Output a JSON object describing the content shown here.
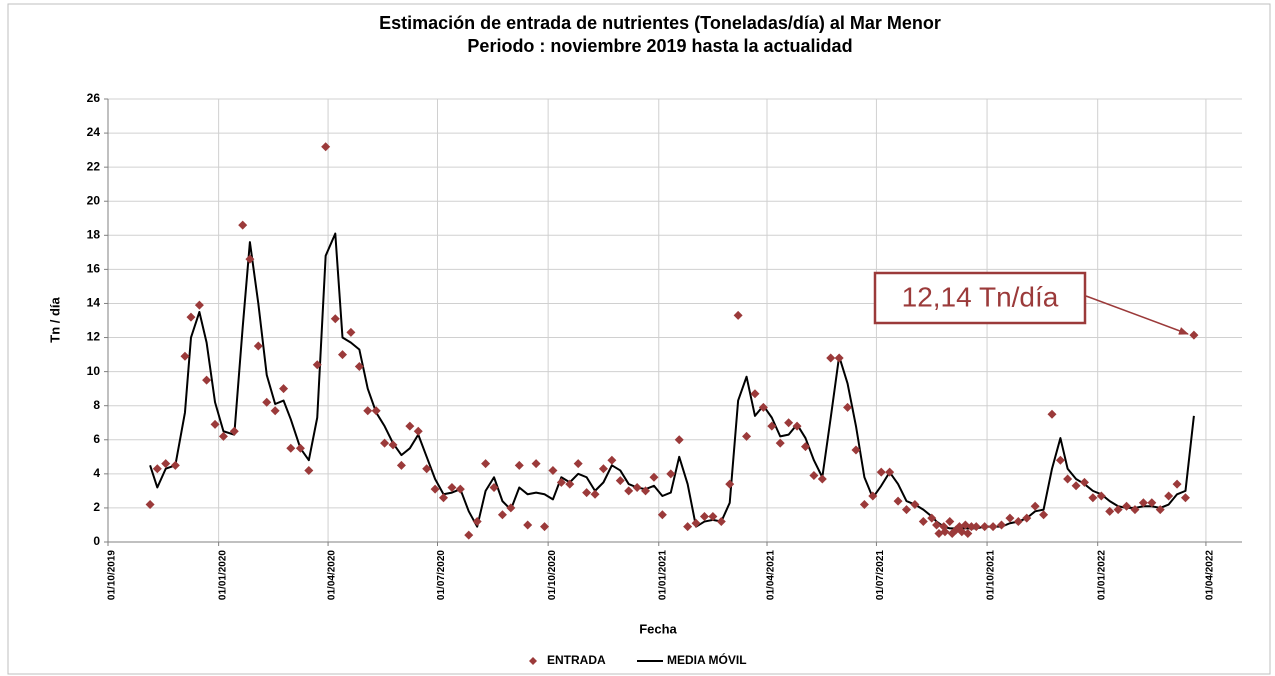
{
  "chart_data": {
    "type": "scatter",
    "title": "Estimación de entrada de nutrientes (Toneladas/día) al  Mar Menor",
    "subtitle": "Periodo : noviembre 2019 hasta la actualidad",
    "x_label": "Fecha",
    "y_label": "Tn  / día",
    "xlim": [
      "2019-10-01",
      "2022-05-01"
    ],
    "xticks": [
      {
        "value": "2019-10-01",
        "label": "01/10/2019"
      },
      {
        "value": "2020-01-01",
        "label": "01/01/2020"
      },
      {
        "value": "2020-04-01",
        "label": "01/04/2020"
      },
      {
        "value": "2020-07-01",
        "label": "01/07/2020"
      },
      {
        "value": "2020-10-01",
        "label": "01/10/2020"
      },
      {
        "value": "2021-01-01",
        "label": "01/01/2021"
      },
      {
        "value": "2021-04-01",
        "label": "01/04/2021"
      },
      {
        "value": "2021-07-01",
        "label": "01/07/2021"
      },
      {
        "value": "2021-10-01",
        "label": "01/10/2021"
      },
      {
        "value": "2022-01-01",
        "label": "01/01/2022"
      },
      {
        "value": "2022-04-01",
        "label": "01/04/2022"
      }
    ],
    "ylim": [
      0,
      26
    ],
    "yticks": [
      0,
      2,
      4,
      6,
      8,
      10,
      12,
      14,
      16,
      18,
      20,
      22,
      24,
      26
    ],
    "grid": true,
    "legend": "bottom",
    "annotations": [
      {
        "text": "12,14 Tn/día",
        "color": "#9b3a3a"
      }
    ],
    "series": [
      {
        "name": "ENTRADA",
        "type": "scatter",
        "color": "#9b3a3a",
        "x": [
          "2019-11-05",
          "2019-11-11",
          "2019-11-18",
          "2019-11-26",
          "2019-12-04",
          "2019-12-09",
          "2019-12-16",
          "2019-12-22",
          "2019-12-29",
          "2020-01-05",
          "2020-01-14",
          "2020-01-21",
          "2020-01-27",
          "2020-02-03",
          "2020-02-10",
          "2020-02-17",
          "2020-02-24",
          "2020-03-01",
          "2020-03-09",
          "2020-03-16",
          "2020-03-23",
          "2020-03-30",
          "2020-04-07",
          "2020-04-13",
          "2020-04-20",
          "2020-04-27",
          "2020-05-04",
          "2020-05-11",
          "2020-05-18",
          "2020-05-25",
          "2020-06-01",
          "2020-06-08",
          "2020-06-15",
          "2020-06-22",
          "2020-06-29",
          "2020-07-06",
          "2020-07-13",
          "2020-07-20",
          "2020-07-27",
          "2020-08-03",
          "2020-08-10",
          "2020-08-17",
          "2020-08-24",
          "2020-08-31",
          "2020-09-07",
          "2020-09-14",
          "2020-09-21",
          "2020-09-28",
          "2020-10-05",
          "2020-10-12",
          "2020-10-19",
          "2020-10-26",
          "2020-11-02",
          "2020-11-09",
          "2020-11-16",
          "2020-11-23",
          "2020-11-30",
          "2020-12-07",
          "2020-12-14",
          "2020-12-21",
          "2020-12-28",
          "2021-01-04",
          "2021-01-11",
          "2021-01-18",
          "2021-01-25",
          "2021-02-01",
          "2021-02-08",
          "2021-02-15",
          "2021-02-22",
          "2021-03-01",
          "2021-03-08",
          "2021-03-15",
          "2021-03-22",
          "2021-03-29",
          "2021-04-05",
          "2021-04-12",
          "2021-04-19",
          "2021-04-26",
          "2021-05-03",
          "2021-05-10",
          "2021-05-17",
          "2021-05-24",
          "2021-05-31",
          "2021-06-07",
          "2021-06-14",
          "2021-06-21",
          "2021-06-28",
          "2021-07-05",
          "2021-07-12",
          "2021-07-19",
          "2021-07-26",
          "2021-08-02",
          "2021-08-09",
          "2021-08-16",
          "2021-08-20",
          "2021-08-22",
          "2021-08-26",
          "2021-08-27",
          "2021-08-31",
          "2021-09-02",
          "2021-09-05",
          "2021-09-08",
          "2021-09-10",
          "2021-09-13",
          "2021-09-15",
          "2021-09-18",
          "2021-09-22",
          "2021-09-29",
          "2021-10-06",
          "2021-10-13",
          "2021-10-20",
          "2021-10-27",
          "2021-11-03",
          "2021-11-10",
          "2021-11-17",
          "2021-11-24",
          "2021-12-01",
          "2021-12-07",
          "2021-12-14",
          "2021-12-21",
          "2021-12-28",
          "2022-01-04",
          "2022-01-11",
          "2022-01-18",
          "2022-01-25",
          "2022-02-01",
          "2022-02-08",
          "2022-02-15",
          "2022-02-22",
          "2022-03-01",
          "2022-03-08",
          "2022-03-15",
          "2022-03-22"
        ],
        "values": [
          2.2,
          4.3,
          4.6,
          4.5,
          10.9,
          13.2,
          13.9,
          9.5,
          6.9,
          6.2,
          6.5,
          18.6,
          16.6,
          11.5,
          8.2,
          7.7,
          9.0,
          5.5,
          5.5,
          4.2,
          10.4,
          23.2,
          13.1,
          11.0,
          12.3,
          10.3,
          7.7,
          7.7,
          5.8,
          5.7,
          4.5,
          6.8,
          6.5,
          4.3,
          3.1,
          2.6,
          3.2,
          3.1,
          0.4,
          1.2,
          4.6,
          3.2,
          1.6,
          2.0,
          4.5,
          1.0,
          4.6,
          0.9,
          4.2,
          3.5,
          3.4,
          4.6,
          2.9,
          2.8,
          4.3,
          4.8,
          3.6,
          3.0,
          3.2,
          3.0,
          3.8,
          1.6,
          4.0,
          6.0,
          0.9,
          1.1,
          1.5,
          1.5,
          1.2,
          3.4,
          13.3,
          6.2,
          8.7,
          7.9,
          6.8,
          5.8,
          7.0,
          6.8,
          5.6,
          3.9,
          3.7,
          10.8,
          10.8,
          7.9,
          5.4,
          2.2,
          2.7,
          4.1,
          4.1,
          2.4,
          1.9,
          2.2,
          1.2,
          1.4,
          1.0,
          0.5,
          0.9,
          0.6,
          1.2,
          0.5,
          0.7,
          0.9,
          0.6,
          1.0,
          0.5,
          0.9,
          0.9,
          0.9,
          0.9,
          1.0,
          1.4,
          1.2,
          1.4,
          2.1,
          1.6,
          7.5,
          4.8,
          3.7,
          3.3,
          3.5,
          2.6,
          2.7,
          1.8,
          1.9,
          2.1,
          1.9,
          2.3,
          2.3,
          1.9,
          2.7,
          3.4,
          2.6,
          12.14
        ]
      },
      {
        "name": "MEDIA MÓVIL",
        "type": "line",
        "color": "#000000",
        "x": [
          "2019-11-05",
          "2019-11-11",
          "2019-11-18",
          "2019-11-26",
          "2019-12-04",
          "2019-12-09",
          "2019-12-16",
          "2019-12-22",
          "2019-12-29",
          "2020-01-05",
          "2020-01-14",
          "2020-01-21",
          "2020-01-27",
          "2020-02-03",
          "2020-02-10",
          "2020-02-17",
          "2020-02-24",
          "2020-03-01",
          "2020-03-09",
          "2020-03-16",
          "2020-03-23",
          "2020-03-30",
          "2020-04-07",
          "2020-04-13",
          "2020-04-20",
          "2020-04-27",
          "2020-05-04",
          "2020-05-11",
          "2020-05-18",
          "2020-05-25",
          "2020-06-01",
          "2020-06-08",
          "2020-06-15",
          "2020-06-22",
          "2020-06-29",
          "2020-07-06",
          "2020-07-13",
          "2020-07-20",
          "2020-07-27",
          "2020-08-03",
          "2020-08-10",
          "2020-08-17",
          "2020-08-24",
          "2020-08-31",
          "2020-09-07",
          "2020-09-14",
          "2020-09-21",
          "2020-09-28",
          "2020-10-05",
          "2020-10-12",
          "2020-10-19",
          "2020-10-26",
          "2020-11-02",
          "2020-11-09",
          "2020-11-16",
          "2020-11-23",
          "2020-11-30",
          "2020-12-07",
          "2020-12-14",
          "2020-12-21",
          "2020-12-28",
          "2021-01-04",
          "2021-01-11",
          "2021-01-18",
          "2021-01-25",
          "2021-02-01",
          "2021-02-08",
          "2021-02-15",
          "2021-02-22",
          "2021-03-01",
          "2021-03-08",
          "2021-03-15",
          "2021-03-22",
          "2021-03-29",
          "2021-04-05",
          "2021-04-12",
          "2021-04-19",
          "2021-04-26",
          "2021-05-03",
          "2021-05-10",
          "2021-05-17",
          "2021-05-24",
          "2021-05-31",
          "2021-06-07",
          "2021-06-14",
          "2021-06-21",
          "2021-06-28",
          "2021-07-05",
          "2021-07-12",
          "2021-07-19",
          "2021-07-26",
          "2021-08-02",
          "2021-08-09",
          "2021-08-16",
          "2021-08-20",
          "2021-08-26",
          "2021-08-31",
          "2021-09-05",
          "2021-09-13",
          "2021-09-22",
          "2021-09-29",
          "2021-10-06",
          "2021-10-13",
          "2021-10-20",
          "2021-10-27",
          "2021-11-03",
          "2021-11-10",
          "2021-11-17",
          "2021-11-24",
          "2021-12-01",
          "2021-12-07",
          "2021-12-14",
          "2021-12-21",
          "2021-12-28",
          "2022-01-04",
          "2022-01-11",
          "2022-01-18",
          "2022-01-25",
          "2022-02-01",
          "2022-02-08",
          "2022-02-15",
          "2022-02-22",
          "2022-03-01",
          "2022-03-08",
          "2022-03-15",
          "2022-03-22"
        ],
        "values": [
          4.5,
          3.2,
          4.3,
          4.5,
          7.6,
          12.0,
          13.5,
          11.7,
          8.2,
          6.5,
          6.3,
          12.6,
          17.6,
          14.0,
          9.8,
          8.1,
          8.3,
          7.2,
          5.5,
          4.8,
          7.3,
          16.8,
          18.1,
          12.0,
          11.7,
          11.3,
          9.0,
          7.6,
          6.8,
          5.8,
          5.1,
          5.5,
          6.3,
          5.0,
          3.7,
          2.8,
          2.9,
          3.1,
          1.8,
          0.9,
          3.0,
          3.8,
          2.4,
          1.9,
          3.2,
          2.8,
          2.9,
          2.8,
          2.5,
          3.8,
          3.5,
          4.0,
          3.8,
          3.0,
          3.5,
          4.5,
          4.2,
          3.4,
          3.2,
          3.1,
          3.3,
          2.7,
          2.9,
          5.0,
          3.4,
          0.9,
          1.2,
          1.3,
          1.2,
          2.3,
          8.3,
          9.7,
          7.4,
          8.0,
          7.3,
          6.2,
          6.3,
          6.9,
          6.1,
          4.8,
          3.8,
          7.3,
          10.9,
          9.3,
          6.8,
          3.8,
          2.6,
          3.3,
          4.1,
          3.4,
          2.4,
          2.2,
          1.9,
          1.5,
          1.2,
          0.9,
          0.8,
          0.8,
          0.8,
          0.8,
          0.9,
          0.9,
          0.9,
          1.1,
          1.2,
          1.4,
          1.8,
          1.9,
          4.3,
          6.1,
          4.3,
          3.7,
          3.4,
          3.0,
          2.8,
          2.4,
          2.1,
          2.0,
          2.0,
          2.1,
          2.1,
          2.0,
          2.2,
          2.8,
          3.0,
          7.4
        ]
      }
    ]
  }
}
